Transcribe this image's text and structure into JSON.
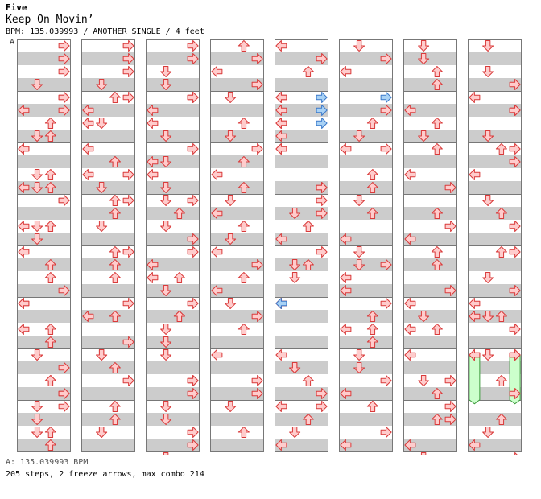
{
  "header": {
    "artist": "Five",
    "title": "Keep On Movin’",
    "meta": "BPM: 135.039993 / ANOTHER SINGLE / 4 feet",
    "bpm_marker": "A"
  },
  "footer": {
    "bpm_line": "A: 135.039993 BPM",
    "stats": "205 steps, 2 freeze arrows, max combo 214"
  },
  "colors": {
    "stripe": "#cccccc",
    "border": "#777777",
    "note_fill": "#ffcccc",
    "note_stroke": "#d93a3a",
    "blue_fill": "#a9d2f5",
    "blue_stroke": "#3a78c9",
    "freeze_fill": "#ccffcc",
    "freeze_stroke": "#3c9a3c"
  },
  "chart_data": {
    "columns": 8,
    "measures_per_column": 8,
    "lanes": [
      "left",
      "down",
      "up",
      "right"
    ],
    "notes": [
      [
        0,
        0,
        0,
        3
      ],
      [
        0,
        0,
        1,
        3
      ],
      [
        0,
        0,
        2,
        3
      ],
      [
        0,
        0,
        3,
        1
      ],
      [
        0,
        1,
        1,
        0
      ],
      [
        0,
        1,
        3,
        1
      ],
      [
        0,
        2,
        2,
        1
      ],
      [
        0,
        2,
        3,
        2
      ],
      [
        0,
        3,
        0,
        3
      ],
      [
        0,
        3,
        2,
        2
      ],
      [
        0,
        4,
        2,
        2
      ],
      [
        0,
        5,
        0,
        0
      ],
      [
        0,
        6,
        2,
        2
      ],
      [
        0,
        6,
        3,
        3
      ],
      [
        0,
        7,
        0,
        1
      ],
      [
        0,
        7,
        3,
        2
      ],
      [
        0,
        0,
        4,
        3
      ],
      [
        0,
        1,
        0,
        3
      ],
      [
        0,
        1,
        3,
        1
      ],
      [
        0,
        2,
        0,
        0
      ],
      [
        0,
        2,
        3,
        1
      ],
      [
        0,
        3,
        2,
        0
      ],
      [
        0,
        4,
        1,
        2
      ],
      [
        0,
        5,
        2,
        2
      ],
      [
        0,
        6,
        0,
        1
      ],
      [
        0,
        6,
        2,
        2
      ],
      [
        0,
        7,
        0,
        3
      ],
      [
        0,
        0,
        6,
        2
      ],
      [
        0,
        1,
        6,
        2
      ],
      [
        0,
        1,
        7,
        0
      ],
      [
        0,
        2,
        3,
        1
      ],
      [
        0,
        3,
        0,
        3
      ],
      [
        0,
        3,
        3,
        1
      ],
      [
        0,
        4,
        6,
        0
      ],
      [
        0,
        4,
        7,
        2
      ],
      [
        0,
        6,
        0,
        1
      ],
      [
        0,
        6,
        1,
        3
      ],
      [
        0,
        7,
        1,
        1
      ],
      [
        0,
        7,
        2,
        1
      ],
      [
        0,
        0,
        5,
        3
      ],
      [
        0,
        1,
        3,
        2
      ],
      [
        0,
        2,
        0,
        0
      ],
      [
        0,
        3,
        2,
        1
      ],
      [
        0,
        4,
        0,
        0
      ],
      [
        0,
        4,
        3,
        3
      ],
      [
        0,
        5,
        0,
        0
      ],
      [
        0,
        6,
        3,
        3
      ],
      [
        0,
        7,
        2,
        2
      ],
      [
        1,
        0,
        0,
        3
      ],
      [
        1,
        0,
        1,
        3
      ],
      [
        1,
        0,
        2,
        3
      ],
      [
        1,
        0,
        3,
        1
      ],
      [
        1,
        1,
        0,
        3
      ],
      [
        1,
        1,
        1,
        0
      ],
      [
        1,
        1,
        2,
        1
      ],
      [
        1,
        2,
        0,
        0
      ],
      [
        1,
        2,
        1,
        2
      ],
      [
        1,
        2,
        2,
        0
      ],
      [
        1,
        2,
        3,
        1
      ],
      [
        1,
        3,
        0,
        3
      ],
      [
        1,
        3,
        1,
        2
      ],
      [
        1,
        4,
        0,
        3
      ],
      [
        1,
        4,
        1,
        2
      ],
      [
        1,
        5,
        0,
        3
      ],
      [
        1,
        5,
        1,
        2
      ],
      [
        1,
        6,
        0,
        1
      ],
      [
        1,
        6,
        2,
        3
      ],
      [
        1,
        7,
        0,
        2
      ],
      [
        1,
        7,
        2,
        1
      ],
      [
        1,
        0,
        4,
        2
      ],
      [
        1,
        1,
        5,
        2
      ],
      [
        1,
        2,
        4,
        2
      ],
      [
        1,
        3,
        6,
        2
      ],
      [
        1,
        4,
        7,
        3
      ],
      [
        1,
        5,
        5,
        2
      ],
      [
        1,
        6,
        6,
        1
      ],
      [
        1,
        7,
        7,
        0
      ],
      [
        1,
        0,
        6,
        0
      ],
      [
        1,
        1,
        6,
        3
      ],
      [
        1,
        2,
        6,
        1
      ],
      [
        1,
        3,
        4,
        2
      ],
      [
        1,
        4,
        5,
        0
      ],
      [
        1,
        5,
        4,
        1
      ],
      [
        1,
        6,
        5,
        2
      ],
      [
        1,
        7,
        5,
        3
      ],
      [
        2,
        0,
        0,
        3
      ],
      [
        2,
        0,
        1,
        3
      ],
      [
        2,
        0,
        2,
        1
      ],
      [
        2,
        0,
        3,
        1
      ],
      [
        2,
        1,
        0,
        3
      ],
      [
        2,
        1,
        1,
        0
      ],
      [
        2,
        1,
        2,
        0
      ],
      [
        2,
        1,
        3,
        1
      ],
      [
        2,
        2,
        0,
        3
      ],
      [
        2,
        2,
        1,
        1
      ],
      [
        2,
        2,
        2,
        0
      ],
      [
        2,
        2,
        3,
        1
      ],
      [
        2,
        3,
        0,
        3
      ],
      [
        2,
        3,
        1,
        2
      ],
      [
        2,
        3,
        2,
        1
      ],
      [
        2,
        3,
        3,
        3
      ],
      [
        2,
        4,
        0,
        3
      ],
      [
        2,
        4,
        1,
        0
      ],
      [
        2,
        4,
        2,
        2
      ],
      [
        2,
        4,
        3,
        1
      ],
      [
        2,
        5,
        0,
        3
      ],
      [
        2,
        5,
        1,
        2
      ],
      [
        2,
        5,
        2,
        1
      ],
      [
        2,
        5,
        3,
        1
      ],
      [
        2,
        6,
        0,
        1
      ],
      [
        2,
        6,
        2,
        3
      ],
      [
        2,
        6,
        3,
        3
      ],
      [
        2,
        7,
        0,
        1
      ],
      [
        2,
        7,
        2,
        3
      ],
      [
        2,
        7,
        3,
        3
      ],
      [
        2,
        0,
        4,
        3
      ],
      [
        2,
        1,
        5,
        0
      ],
      [
        2,
        2,
        4,
        1
      ],
      [
        2,
        3,
        6,
        0
      ],
      [
        2,
        4,
        5,
        2
      ],
      [
        2,
        5,
        6,
        3
      ],
      [
        2,
        6,
        5,
        1
      ],
      [
        2,
        7,
        4,
        1
      ],
      [
        3,
        0,
        0,
        2
      ],
      [
        3,
        0,
        1,
        3
      ],
      [
        3,
        0,
        2,
        0
      ],
      [
        3,
        0,
        3,
        3
      ],
      [
        3,
        1,
        0,
        1
      ],
      [
        3,
        1,
        2,
        2
      ],
      [
        3,
        1,
        3,
        1
      ],
      [
        3,
        2,
        0,
        3
      ],
      [
        3,
        2,
        1,
        2
      ],
      [
        3,
        2,
        2,
        0
      ],
      [
        3,
        2,
        3,
        2
      ],
      [
        3,
        3,
        0,
        1
      ],
      [
        3,
        3,
        1,
        0
      ],
      [
        3,
        3,
        2,
        2
      ],
      [
        3,
        3,
        3,
        1
      ],
      [
        3,
        4,
        0,
        0
      ],
      [
        3,
        4,
        1,
        3
      ],
      [
        3,
        4,
        2,
        2
      ],
      [
        3,
        4,
        3,
        0
      ],
      [
        3,
        5,
        0,
        1
      ],
      [
        3,
        5,
        1,
        3
      ],
      [
        3,
        5,
        2,
        2
      ],
      [
        3,
        6,
        0,
        0
      ],
      [
        3,
        6,
        2,
        3
      ],
      [
        3,
        6,
        3,
        3
      ],
      [
        3,
        7,
        0,
        1
      ],
      [
        3,
        7,
        2,
        2
      ],
      [
        4,
        0,
        0,
        0
      ],
      [
        4,
        0,
        1,
        3
      ],
      [
        4,
        0,
        2,
        2
      ],
      [
        4,
        1,
        0,
        0
      ],
      [
        4,
        1,
        1,
        0
      ],
      [
        4,
        1,
        2,
        0
      ],
      [
        4,
        1,
        3,
        0
      ],
      [
        4,
        2,
        0,
        0
      ],
      [
        4,
        2,
        3,
        3
      ],
      [
        4,
        3,
        0,
        3
      ],
      [
        4,
        3,
        1,
        1
      ],
      [
        4,
        3,
        2,
        2
      ],
      [
        4,
        3,
        3,
        0
      ],
      [
        4,
        4,
        0,
        3
      ],
      [
        4,
        4,
        1,
        2
      ],
      [
        4,
        4,
        2,
        1
      ],
      [
        4,
        5,
        0,
        0
      ],
      [
        4,
        6,
        0,
        0
      ],
      [
        4,
        6,
        1,
        1
      ],
      [
        4,
        6,
        2,
        2
      ],
      [
        4,
        6,
        3,
        3
      ],
      [
        4,
        7,
        0,
        3
      ],
      [
        4,
        7,
        1,
        2
      ],
      [
        4,
        7,
        2,
        1
      ],
      [
        4,
        7,
        3,
        0
      ],
      [
        4,
        0,
        4,
        0
      ],
      [
        4,
        0,
        6,
        0
      ],
      [
        4,
        1,
        4,
        0
      ],
      [
        4,
        1,
        7,
        3
      ],
      [
        4,
        2,
        5,
        3
      ],
      [
        4,
        3,
        5,
        1
      ],
      [
        4,
        4,
        4,
        0
      ],
      [
        4,
        5,
        5,
        1
      ],
      [
        4,
        6,
        4,
        0
      ],
      [
        4,
        7,
        6,
        1
      ],
      [
        5,
        0,
        0,
        1
      ],
      [
        5,
        0,
        1,
        3
      ],
      [
        5,
        0,
        2,
        0
      ],
      [
        5,
        1,
        1,
        3
      ],
      [
        5,
        1,
        2,
        2
      ],
      [
        5,
        1,
        3,
        1
      ],
      [
        5,
        2,
        0,
        3
      ],
      [
        5,
        2,
        2,
        2
      ],
      [
        5,
        2,
        3,
        2
      ],
      [
        5,
        3,
        0,
        1
      ],
      [
        5,
        3,
        1,
        2
      ],
      [
        5,
        3,
        3,
        0
      ],
      [
        5,
        4,
        0,
        1
      ],
      [
        5,
        4,
        1,
        1
      ],
      [
        5,
        4,
        2,
        0
      ],
      [
        5,
        4,
        3,
        0
      ],
      [
        5,
        5,
        0,
        3
      ],
      [
        5,
        5,
        1,
        2
      ],
      [
        5,
        5,
        2,
        0
      ],
      [
        5,
        5,
        3,
        2
      ],
      [
        5,
        6,
        0,
        1
      ],
      [
        5,
        6,
        2,
        3
      ],
      [
        5,
        6,
        3,
        0
      ],
      [
        5,
        7,
        0,
        2
      ],
      [
        5,
        7,
        2,
        3
      ],
      [
        5,
        7,
        3,
        0
      ],
      [
        5,
        1,
        4,
        0
      ],
      [
        5,
        3,
        5,
        3
      ],
      [
        5,
        4,
        6,
        2
      ],
      [
        5,
        5,
        5,
        1
      ],
      [
        5,
        6,
        4,
        2
      ],
      [
        5,
        7,
        6,
        2
      ],
      [
        6,
        0,
        0,
        1
      ],
      [
        6,
        0,
        1,
        1
      ],
      [
        6,
        0,
        2,
        2
      ],
      [
        6,
        0,
        3,
        2
      ],
      [
        6,
        1,
        1,
        0
      ],
      [
        6,
        1,
        2,
        2
      ],
      [
        6,
        1,
        3,
        1
      ],
      [
        6,
        2,
        0,
        2
      ],
      [
        6,
        2,
        2,
        0
      ],
      [
        6,
        2,
        3,
        3
      ],
      [
        6,
        3,
        1,
        2
      ],
      [
        6,
        3,
        2,
        3
      ],
      [
        6,
        3,
        3,
        0
      ],
      [
        6,
        4,
        1,
        2
      ],
      [
        6,
        4,
        3,
        3
      ],
      [
        6,
        5,
        0,
        0
      ],
      [
        6,
        5,
        1,
        1
      ],
      [
        6,
        5,
        2,
        2
      ],
      [
        6,
        6,
        0,
        0
      ],
      [
        6,
        6,
        2,
        1
      ],
      [
        6,
        6,
        3,
        2
      ],
      [
        6,
        7,
        0,
        3
      ],
      [
        6,
        7,
        1,
        2
      ],
      [
        6,
        7,
        3,
        0
      ],
      [
        6,
        2,
        5,
        2
      ],
      [
        6,
        3,
        4,
        2
      ],
      [
        6,
        4,
        6,
        0
      ],
      [
        6,
        5,
        6,
        3
      ],
      [
        6,
        6,
        5,
        3
      ],
      [
        6,
        7,
        4,
        1
      ],
      [
        7,
        0,
        0,
        1
      ],
      [
        7,
        0,
        2,
        1
      ],
      [
        7,
        0,
        3,
        3
      ],
      [
        7,
        1,
        0,
        0
      ],
      [
        7,
        1,
        1,
        3
      ],
      [
        7,
        1,
        3,
        1
      ],
      [
        7,
        2,
        0,
        2
      ],
      [
        7,
        2,
        1,
        3
      ],
      [
        7,
        2,
        2,
        0
      ],
      [
        7,
        3,
        0,
        1
      ],
      [
        7,
        3,
        1,
        2
      ],
      [
        7,
        3,
        2,
        3
      ],
      [
        7,
        4,
        0,
        2
      ],
      [
        7,
        4,
        2,
        1
      ],
      [
        7,
        4,
        3,
        3
      ],
      [
        7,
        5,
        0,
        0
      ],
      [
        7,
        5,
        1,
        0
      ],
      [
        7,
        5,
        1,
        1
      ],
      [
        7,
        5,
        2,
        3
      ],
      [
        7,
        6,
        0,
        0
      ],
      [
        7,
        6,
        0,
        3
      ],
      [
        7,
        6,
        3,
        3
      ],
      [
        7,
        7,
        1,
        2
      ],
      [
        7,
        7,
        2,
        1
      ],
      [
        7,
        7,
        3,
        0
      ],
      [
        7,
        0,
        5,
        3
      ],
      [
        7,
        1,
        4,
        3
      ],
      [
        7,
        3,
        4,
        3
      ],
      [
        7,
        4,
        5,
        2
      ],
      [
        7,
        5,
        4,
        1
      ],
      [
        7,
        5,
        6,
        2
      ],
      [
        7,
        7,
        4,
        3
      ]
    ],
    "blue_notes": [
      [
        4,
        1,
        0,
        3
      ],
      [
        4,
        1,
        1,
        3
      ],
      [
        4,
        1,
        2,
        3
      ],
      [
        5,
        0,
        4,
        3
      ],
      [
        4,
        5,
        0,
        0
      ]
    ],
    "freezes": [
      {
        "col": 7,
        "lane": 0,
        "measure": 6,
        "start": 0,
        "end": 4.3
      },
      {
        "col": 7,
        "lane": 3,
        "measure": 6,
        "start": 0,
        "end": 4.3
      }
    ]
  }
}
